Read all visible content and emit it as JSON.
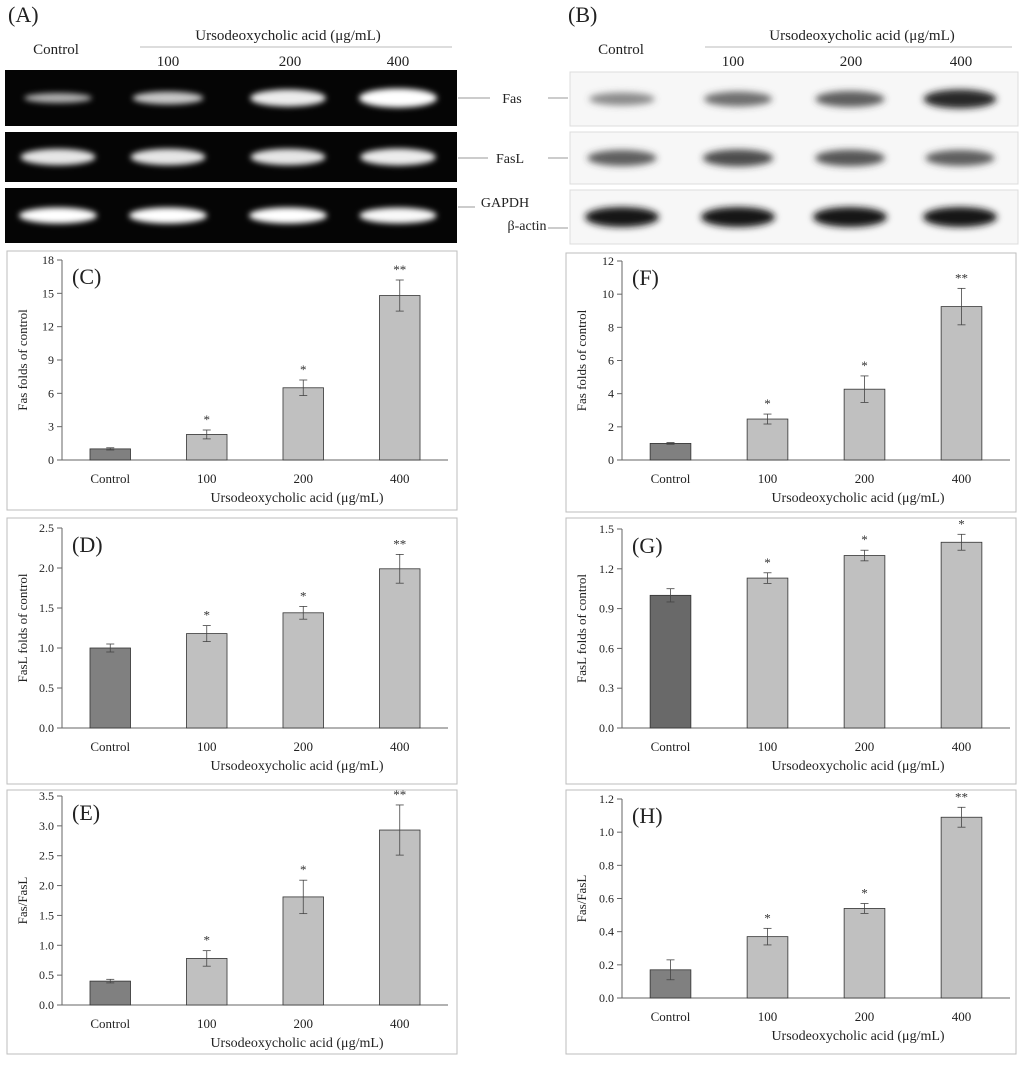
{
  "blots": {
    "left": {
      "letter": "(A)",
      "control_label": "Control",
      "treatment_header": "Ursodeoxycholic acid (μg/mL)",
      "doses": [
        "100",
        "200",
        "400"
      ],
      "rows": [
        {
          "label": "Fas",
          "intensity": [
            0.35,
            0.55,
            0.85,
            1.0
          ]
        },
        {
          "label": "FasL",
          "intensity": [
            0.8,
            0.8,
            0.8,
            0.85
          ]
        },
        {
          "label": "GAPDH",
          "intensity": [
            1.0,
            1.0,
            1.0,
            0.95
          ]
        }
      ]
    },
    "right": {
      "letter": "(B)",
      "control_label": "Control",
      "treatment_header": "Ursodeoxycholic acid (μg/mL)",
      "doses": [
        "100",
        "200",
        "400"
      ],
      "rows": [
        {
          "label": "Fas",
          "intensity": [
            0.3,
            0.5,
            0.6,
            0.9
          ]
        },
        {
          "label": "FasL",
          "intensity": [
            0.6,
            0.7,
            0.65,
            0.6
          ]
        },
        {
          "label": "β-actin",
          "intensity": [
            1.0,
            1.0,
            1.0,
            1.0
          ]
        }
      ]
    }
  },
  "chart_data": [
    {
      "id": "C",
      "letter": "(C)",
      "type": "bar",
      "categories": [
        "Control",
        "100",
        "200",
        "400"
      ],
      "values": [
        1.0,
        2.3,
        6.5,
        14.8
      ],
      "errors": [
        0.1,
        0.4,
        0.7,
        1.4
      ],
      "significance": [
        "",
        "*",
        "*",
        "**"
      ],
      "ylabel": "Fas folds of control",
      "xlabel": "Ursodeoxycholic acid (μg/mL)",
      "ylim": [
        0,
        18
      ],
      "yticks": [
        "0",
        "3",
        "6",
        "9",
        "12",
        "15",
        "18"
      ],
      "bar_colors": [
        "#808080",
        "#c0c0c0",
        "#c0c0c0",
        "#c0c0c0"
      ]
    },
    {
      "id": "D",
      "letter": "(D)",
      "type": "bar",
      "categories": [
        "Control",
        "100",
        "200",
        "400"
      ],
      "values": [
        1.0,
        1.18,
        1.44,
        1.99
      ],
      "errors": [
        0.05,
        0.1,
        0.08,
        0.18
      ],
      "significance": [
        "",
        "*",
        "*",
        "**"
      ],
      "ylabel": "FasL  folds of control",
      "xlabel": "Ursodeoxycholic acid (μg/mL)",
      "ylim": [
        0,
        2.5
      ],
      "yticks": [
        "0.0",
        "0.5",
        "1.0",
        "1.5",
        "2.0",
        "2.5"
      ],
      "bar_colors": [
        "#808080",
        "#c0c0c0",
        "#c0c0c0",
        "#c0c0c0"
      ]
    },
    {
      "id": "E",
      "letter": "(E)",
      "type": "bar",
      "categories": [
        "Control",
        "100",
        "200",
        "400"
      ],
      "values": [
        0.4,
        0.78,
        1.81,
        2.93
      ],
      "errors": [
        0.03,
        0.13,
        0.28,
        0.42
      ],
      "significance": [
        "",
        "*",
        "*",
        "**"
      ],
      "ylabel": "Fas/FasL",
      "xlabel": "Ursodeoxycholic acid (μg/mL)",
      "ylim": [
        0,
        3.5
      ],
      "yticks": [
        "0.0",
        "0.5",
        "1.0",
        "1.5",
        "2.0",
        "2.5",
        "3.0",
        "3.5"
      ],
      "bar_colors": [
        "#808080",
        "#c0c0c0",
        "#c0c0c0",
        "#c0c0c0"
      ]
    },
    {
      "id": "F",
      "letter": "(F)",
      "type": "bar",
      "categories": [
        "Control",
        "100",
        "200",
        "400"
      ],
      "values": [
        1.0,
        2.47,
        4.27,
        9.25
      ],
      "errors": [
        0.05,
        0.3,
        0.8,
        1.1
      ],
      "significance": [
        "",
        "*",
        "*",
        "**"
      ],
      "ylabel": "Fas folds of control",
      "xlabel": "Ursodeoxycholic acid (μg/mL)",
      "ylim": [
        0,
        12
      ],
      "yticks": [
        "0",
        "2",
        "4",
        "6",
        "8",
        "10",
        "12"
      ],
      "bar_colors": [
        "#808080",
        "#c0c0c0",
        "#c0c0c0",
        "#c0c0c0"
      ]
    },
    {
      "id": "G",
      "letter": "(G)",
      "type": "bar",
      "categories": [
        "Control",
        "100",
        "200",
        "400"
      ],
      "values": [
        1.0,
        1.13,
        1.3,
        1.4
      ],
      "errors": [
        0.05,
        0.04,
        0.04,
        0.06
      ],
      "significance": [
        "",
        "*",
        "*",
        "*"
      ],
      "ylabel": "FasL  folds of control",
      "xlabel": "Ursodeoxycholic acid (μg/mL)",
      "ylim": [
        0,
        1.5
      ],
      "yticks": [
        "0.0",
        "0.3",
        "0.6",
        "0.9",
        "1.2",
        "1.5"
      ],
      "bar_colors": [
        "#696969",
        "#c0c0c0",
        "#c0c0c0",
        "#c0c0c0"
      ]
    },
    {
      "id": "H",
      "letter": "(H)",
      "type": "bar",
      "categories": [
        "Control",
        "100",
        "200",
        "400"
      ],
      "values": [
        0.17,
        0.37,
        0.54,
        1.09
      ],
      "errors": [
        0.06,
        0.05,
        0.03,
        0.06
      ],
      "significance": [
        "",
        "*",
        "*",
        "**"
      ],
      "ylabel": "Fas/FasL",
      "xlabel": "Ursodeoxycholic acid (μg/mL)",
      "ylim": [
        0,
        1.2
      ],
      "yticks": [
        "0.0",
        "0.2",
        "0.4",
        "0.6",
        "0.8",
        "1.0",
        "1.2"
      ],
      "bar_colors": [
        "#808080",
        "#c0c0c0",
        "#c0c0c0",
        "#c0c0c0"
      ]
    }
  ]
}
